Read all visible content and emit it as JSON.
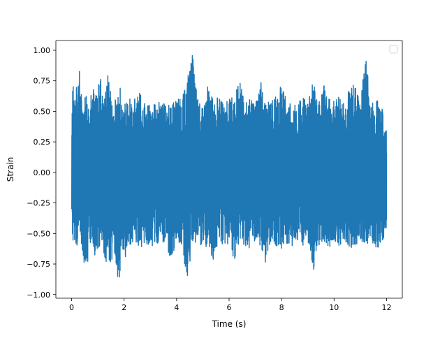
{
  "chart_data": {
    "type": "line",
    "title": "",
    "xlabel": "Time (s)",
    "ylabel": "Strain",
    "xlim": [
      -0.6,
      12.6
    ],
    "ylim": [
      -1.03,
      1.08
    ],
    "x_ticks": [
      0,
      2,
      4,
      6,
      8,
      10,
      12
    ],
    "x_tick_labels": [
      "0",
      "2",
      "4",
      "6",
      "8",
      "10",
      "12"
    ],
    "y_ticks": [
      -1.0,
      -0.75,
      -0.5,
      -0.25,
      0.0,
      0.25,
      0.5,
      0.75,
      1.0
    ],
    "y_tick_labels": [
      "−1.00",
      "−0.75",
      "−0.50",
      "−0.25",
      "0.00",
      "0.25",
      "0.50",
      "0.75",
      "1.00"
    ],
    "grid": false,
    "legend": {
      "placement": "top-right",
      "entries": []
    },
    "series_color": "#1f77b4",
    "series": [
      {
        "x": [
          0.0,
          0.05,
          0.1,
          0.2,
          0.3,
          0.4,
          0.5,
          0.6,
          0.7,
          0.8,
          0.9,
          1.0,
          1.1,
          1.2,
          1.3,
          1.4,
          1.5,
          1.6,
          1.7,
          1.8,
          1.9,
          2.0,
          2.2,
          2.4,
          2.6,
          2.8,
          3.0,
          3.2,
          3.4,
          3.6,
          3.8,
          4.0,
          4.2,
          4.4,
          4.6,
          4.8,
          5.0,
          5.2,
          5.4,
          5.6,
          5.8,
          6.0,
          6.2,
          6.4,
          6.6,
          6.8,
          7.0,
          7.2,
          7.4,
          7.6,
          7.8,
          8.0,
          8.2,
          8.4,
          8.6,
          8.8,
          9.0,
          9.2,
          9.4,
          9.6,
          9.8,
          10.0,
          10.2,
          10.4,
          10.6,
          10.8,
          11.0,
          11.2,
          11.4,
          11.6,
          11.8,
          12.0
        ],
        "y_max": [
          0.47,
          0.89,
          0.55,
          0.72,
          0.84,
          0.55,
          0.65,
          0.6,
          0.55,
          0.75,
          0.6,
          0.72,
          0.78,
          0.6,
          0.66,
          0.84,
          0.62,
          0.58,
          0.6,
          0.8,
          0.58,
          0.55,
          0.6,
          0.6,
          0.65,
          0.55,
          0.55,
          0.56,
          0.58,
          0.55,
          0.55,
          0.6,
          0.6,
          0.75,
          0.97,
          0.6,
          0.52,
          0.72,
          0.58,
          0.62,
          0.55,
          0.6,
          0.62,
          0.75,
          0.56,
          0.6,
          0.55,
          0.75,
          0.55,
          0.6,
          0.62,
          0.72,
          0.58,
          0.55,
          0.55,
          0.62,
          0.56,
          0.75,
          0.55,
          0.72,
          0.6,
          0.58,
          0.62,
          0.55,
          0.7,
          0.72,
          0.55,
          0.97,
          0.55,
          0.6,
          0.55,
          0.35
        ],
        "y_min": [
          -0.3,
          -0.64,
          -0.55,
          -0.6,
          -0.5,
          -0.62,
          -0.78,
          -0.75,
          -0.6,
          -0.55,
          -0.7,
          -0.6,
          -0.65,
          -0.62,
          -0.75,
          -0.68,
          -0.78,
          -0.6,
          -0.75,
          -0.97,
          -0.6,
          -0.72,
          -0.6,
          -0.55,
          -0.62,
          -0.58,
          -0.6,
          -0.6,
          -0.55,
          -0.6,
          -0.72,
          -0.55,
          -0.6,
          -0.88,
          -0.6,
          -0.55,
          -0.62,
          -0.6,
          -0.72,
          -0.55,
          -0.6,
          -0.58,
          -0.72,
          -0.55,
          -0.6,
          -0.62,
          -0.55,
          -0.6,
          -0.75,
          -0.55,
          -0.6,
          -0.62,
          -0.58,
          -0.6,
          -0.55,
          -0.6,
          -0.55,
          -0.82,
          -0.6,
          -0.55,
          -0.62,
          -0.55,
          -0.6,
          -0.55,
          -0.62,
          -0.6,
          -0.55,
          -0.6,
          -0.55,
          -0.62,
          -0.6,
          -0.45
        ]
      }
    ]
  }
}
